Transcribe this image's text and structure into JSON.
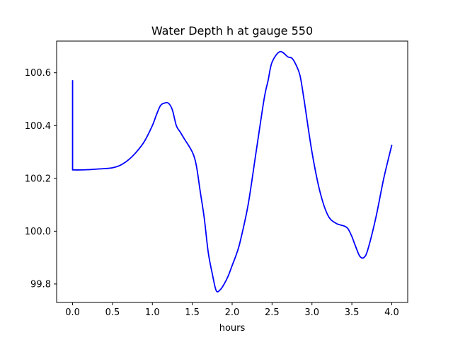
{
  "chart_data": {
    "type": "line",
    "title": "Water Depth h at gauge 550",
    "xlabel": "hours",
    "ylabel": "",
    "xlim": [
      -0.2,
      4.2
    ],
    "ylim": [
      99.73,
      100.72
    ],
    "xticks": [
      0.0,
      0.5,
      1.0,
      1.5,
      2.0,
      2.5,
      3.0,
      3.5,
      4.0
    ],
    "xtick_labels": [
      "0.0",
      "0.5",
      "1.0",
      "1.5",
      "2.0",
      "2.5",
      "3.0",
      "3.5",
      "4.0"
    ],
    "yticks": [
      99.8,
      100.0,
      100.2,
      100.4,
      100.6
    ],
    "ytick_labels": [
      "99.8",
      "100.0",
      "100.2",
      "100.4",
      "100.6"
    ],
    "grid": false,
    "series": [
      {
        "color": "#0000ff",
        "x": [
          0.0,
          0.0,
          0.1,
          0.2,
          0.3,
          0.4,
          0.5,
          0.6,
          0.7,
          0.8,
          0.9,
          1.0,
          1.05,
          1.1,
          1.15,
          1.2,
          1.25,
          1.3,
          1.35,
          1.4,
          1.5,
          1.55,
          1.6,
          1.65,
          1.7,
          1.75,
          1.8,
          1.85,
          1.9,
          1.95,
          2.0,
          2.05,
          2.1,
          2.2,
          2.3,
          2.4,
          2.45,
          2.5,
          2.6,
          2.7,
          2.75,
          2.8,
          2.85,
          2.9,
          3.0,
          3.1,
          3.2,
          3.3,
          3.4,
          3.45,
          3.5,
          3.55,
          3.6,
          3.65,
          3.7,
          3.8,
          3.9,
          4.0
        ],
        "values": [
          100.57,
          100.232,
          100.232,
          100.233,
          100.235,
          100.237,
          100.24,
          100.25,
          100.27,
          100.3,
          100.34,
          100.4,
          100.44,
          100.475,
          100.485,
          100.485,
          100.46,
          100.4,
          100.375,
          100.35,
          100.3,
          100.25,
          100.15,
          100.05,
          99.92,
          99.84,
          99.775,
          99.778,
          99.8,
          99.83,
          99.87,
          99.91,
          99.96,
          100.1,
          100.3,
          100.5,
          100.57,
          100.64,
          100.68,
          100.66,
          100.655,
          100.63,
          100.59,
          100.5,
          100.3,
          100.15,
          100.06,
          100.03,
          100.02,
          100.01,
          99.98,
          99.94,
          99.905,
          99.9,
          99.93,
          100.05,
          100.2,
          100.325
        ]
      }
    ]
  }
}
